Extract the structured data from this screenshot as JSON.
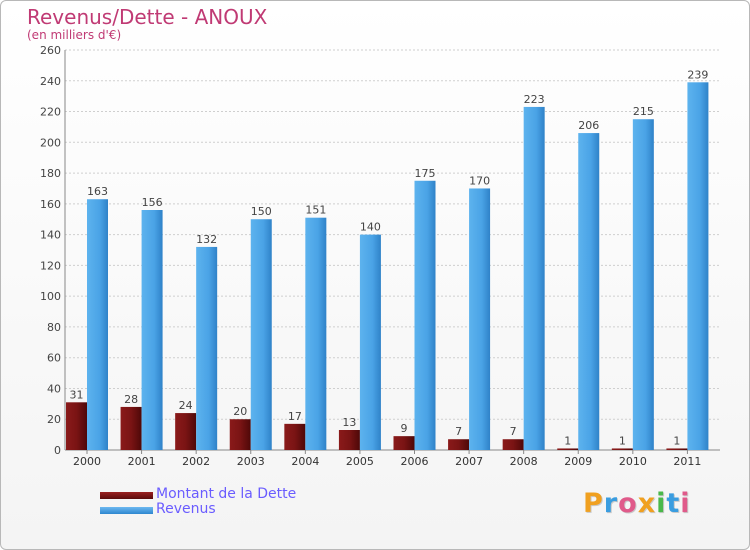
{
  "title": "Revenus/Dette - ANOUX",
  "subtitle": "(en milliers d'€)",
  "chart_data": {
    "type": "bar",
    "title": "Revenus/Dette - ANOUX",
    "ylabel": "(en milliers d'€)",
    "xlabel": "",
    "ylim": [
      0,
      260
    ],
    "y_ticks": [
      "0",
      "20",
      "40",
      "60",
      "80",
      "100",
      "120",
      "140",
      "160",
      "180",
      "200",
      "220",
      "240",
      "260"
    ],
    "grid": true,
    "categories": [
      "2000",
      "2001",
      "2002",
      "2003",
      "2004",
      "2005",
      "2006",
      "2007",
      "2008",
      "2009",
      "2010",
      "2011"
    ],
    "series": [
      {
        "name": "Montant de la Dette",
        "color": "#7a1414",
        "values": [
          31,
          28,
          24,
          20,
          17,
          13,
          9,
          7,
          7,
          1,
          1,
          1
        ]
      },
      {
        "name": "Revenus",
        "color": "#4aa3e6",
        "values": [
          163,
          156,
          132,
          150,
          151,
          140,
          175,
          170,
          223,
          206,
          215,
          239
        ]
      }
    ]
  },
  "legend": {
    "debt_label": "Montant de la Dette",
    "revenue_label": "Revenus"
  },
  "logo": {
    "letters": [
      "P",
      "r",
      "o",
      "x",
      "i",
      "t",
      "i"
    ],
    "colors": [
      "#f0a020",
      "#3a9de0",
      "#e05a8a",
      "#f0a020",
      "#4ab84a",
      "#3a9de0",
      "#e05a8a"
    ]
  }
}
